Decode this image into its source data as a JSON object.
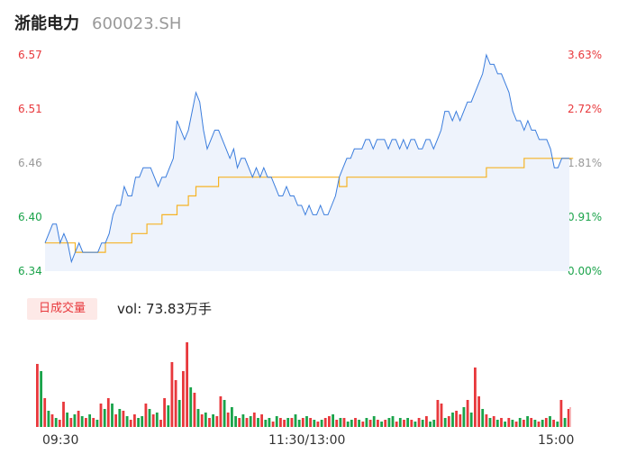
{
  "header": {
    "name": "浙能电力",
    "code": "600023.SH"
  },
  "price_axis": {
    "left_labels": [
      "6.57",
      "6.51",
      "6.46",
      "6.40",
      "6.34"
    ],
    "right_labels": [
      "3.63%",
      "2.72%",
      "1.81%",
      "0.91%",
      "0.00%"
    ]
  },
  "volume_panel": {
    "badge": "日成交量",
    "readout": "vol: 73.83万手"
  },
  "time_axis": [
    "09:30",
    "11:30/13:00",
    "15:00"
  ],
  "colors": {
    "up": "#e8383c",
    "down": "#1aa34a",
    "price_line": "#3b7ddd",
    "avg_line": "#f5b325",
    "area_fill": "#eef3fc"
  },
  "chart_data": [
    {
      "type": "line",
      "title": "",
      "ylim": [
        6.34,
        6.57
      ],
      "y_pct_range": [
        "0.00%",
        "3.63%"
      ],
      "x_range": [
        "09:30",
        "15:00"
      ],
      "series": [
        {
          "values": [
            6.37,
            6.38,
            6.39,
            6.39,
            6.37,
            6.38,
            6.37,
            6.35,
            6.36,
            6.37,
            6.36,
            6.36,
            6.36,
            6.36,
            6.36,
            6.37,
            6.37,
            6.38,
            6.4,
            6.41,
            6.41,
            6.43,
            6.42,
            6.42,
            6.44,
            6.44,
            6.45,
            6.45,
            6.45,
            6.44,
            6.43,
            6.44,
            6.44,
            6.45,
            6.46,
            6.5,
            6.49,
            6.48,
            6.49,
            6.51,
            6.53,
            6.52,
            6.49,
            6.47,
            6.48,
            6.49,
            6.49,
            6.48,
            6.47,
            6.46,
            6.47,
            6.45,
            6.46,
            6.46,
            6.45,
            6.44,
            6.45,
            6.44,
            6.45,
            6.44,
            6.44,
            6.43,
            6.42,
            6.42,
            6.43,
            6.42,
            6.42,
            6.41,
            6.41,
            6.4,
            6.41,
            6.4,
            6.4,
            6.41,
            6.4,
            6.4,
            6.41,
            6.42,
            6.44,
            6.45,
            6.46,
            6.46,
            6.47,
            6.47,
            6.47,
            6.48,
            6.48,
            6.47,
            6.48,
            6.48,
            6.48,
            6.47,
            6.48,
            6.48,
            6.47,
            6.48,
            6.47,
            6.48,
            6.48,
            6.47,
            6.47,
            6.48,
            6.48,
            6.47,
            6.48,
            6.49,
            6.51,
            6.51,
            6.5,
            6.51,
            6.5,
            6.51,
            6.52,
            6.52,
            6.53,
            6.54,
            6.55,
            6.57,
            6.56,
            6.56,
            6.55,
            6.55,
            6.54,
            6.53,
            6.51,
            6.5,
            6.5,
            6.49,
            6.5,
            6.49,
            6.49,
            6.48,
            6.48,
            6.48,
            6.47,
            6.45,
            6.45,
            6.46,
            6.46,
            6.46
          ]
        },
        {
          "values": [
            6.37,
            6.37,
            6.37,
            6.37,
            6.37,
            6.37,
            6.37,
            6.37,
            6.36,
            6.36,
            6.36,
            6.36,
            6.36,
            6.36,
            6.36,
            6.36,
            6.37,
            6.37,
            6.37,
            6.37,
            6.37,
            6.37,
            6.37,
            6.38,
            6.38,
            6.38,
            6.38,
            6.39,
            6.39,
            6.39,
            6.39,
            6.4,
            6.4,
            6.4,
            6.4,
            6.41,
            6.41,
            6.41,
            6.42,
            6.42,
            6.43,
            6.43,
            6.43,
            6.43,
            6.43,
            6.43,
            6.44,
            6.44,
            6.44,
            6.44,
            6.44,
            6.44,
            6.44,
            6.44,
            6.44,
            6.44,
            6.44,
            6.44,
            6.44,
            6.44,
            6.44,
            6.44,
            6.44,
            6.44,
            6.44,
            6.44,
            6.44,
            6.44,
            6.44,
            6.44,
            6.44,
            6.44,
            6.44,
            6.44,
            6.44,
            6.44,
            6.44,
            6.44,
            6.43,
            6.43,
            6.44,
            6.44,
            6.44,
            6.44,
            6.44,
            6.44,
            6.44,
            6.44,
            6.44,
            6.44,
            6.44,
            6.44,
            6.44,
            6.44,
            6.44,
            6.44,
            6.44,
            6.44,
            6.44,
            6.44,
            6.44,
            6.44,
            6.44,
            6.44,
            6.44,
            6.44,
            6.44,
            6.44,
            6.44,
            6.44,
            6.44,
            6.44,
            6.44,
            6.44,
            6.44,
            6.44,
            6.44,
            6.45,
            6.45,
            6.45,
            6.45,
            6.45,
            6.45,
            6.45,
            6.45,
            6.45,
            6.45,
            6.46,
            6.46,
            6.46,
            6.46,
            6.46,
            6.46,
            6.46,
            6.46,
            6.46,
            6.46,
            6.46,
            6.46,
            6.46,
            6.46
          ]
        }
      ]
    },
    {
      "type": "bar",
      "title": "",
      "volume": [
        70,
        62,
        32,
        18,
        14,
        10,
        8,
        28,
        16,
        10,
        14,
        18,
        12,
        10,
        14,
        10,
        8,
        26,
        20,
        32,
        26,
        14,
        20,
        18,
        12,
        8,
        14,
        10,
        12,
        26,
        20,
        14,
        16,
        8,
        32,
        24,
        72,
        52,
        30,
        62,
        94,
        44,
        38,
        20,
        14,
        16,
        10,
        14,
        12,
        34,
        30,
        16,
        22,
        12,
        10,
        14,
        10,
        12,
        16,
        10,
        14,
        8,
        10,
        6,
        12,
        10,
        8,
        10,
        10,
        14,
        8,
        10,
        12,
        10,
        8,
        6,
        8,
        10,
        12,
        14,
        8,
        10,
        10,
        6,
        8,
        10,
        8,
        6,
        10,
        8,
        12,
        8,
        6,
        8,
        10,
        12,
        6,
        10,
        8,
        10,
        8,
        6,
        10,
        8,
        12,
        6,
        8,
        30,
        26,
        10,
        12,
        16,
        18,
        14,
        22,
        30,
        16,
        66,
        34,
        20,
        14,
        10,
        12,
        8,
        10,
        6,
        10,
        8,
        6,
        10,
        8,
        12,
        10,
        8,
        6,
        8,
        10,
        12,
        8,
        6,
        30,
        10,
        20
      ],
      "up": [
        1,
        0,
        1,
        0,
        1,
        0,
        1,
        1,
        0,
        1,
        0,
        1,
        0,
        1,
        0,
        1,
        0,
        1,
        0,
        1,
        0,
        1,
        0,
        1,
        0,
        1,
        1,
        0,
        0,
        1,
        0,
        1,
        0,
        1,
        1,
        0,
        1,
        1,
        0,
        1,
        1,
        0,
        1,
        0,
        1,
        0,
        1,
        0,
        1,
        1,
        0,
        1,
        0,
        0,
        1,
        0,
        1,
        0,
        1,
        0,
        1,
        0,
        0,
        1,
        0,
        1,
        1,
        0,
        1,
        0,
        0,
        1,
        0,
        1,
        0,
        1,
        0,
        1,
        1,
        0,
        1,
        0,
        1,
        0,
        0,
        1,
        0,
        1,
        0,
        1,
        0,
        1,
        0,
        1,
        0,
        0,
        1,
        0,
        1,
        0,
        1,
        0,
        1,
        0,
        1,
        0,
        0,
        1,
        1,
        0,
        1,
        0,
        1,
        1,
        0,
        1,
        0,
        1,
        1,
        0,
        1,
        0,
        1,
        0,
        1,
        0,
        1,
        0,
        1,
        0,
        1,
        0,
        1,
        0,
        1,
        0,
        1,
        0,
        1,
        0,
        1,
        0,
        1
      ]
    }
  ]
}
